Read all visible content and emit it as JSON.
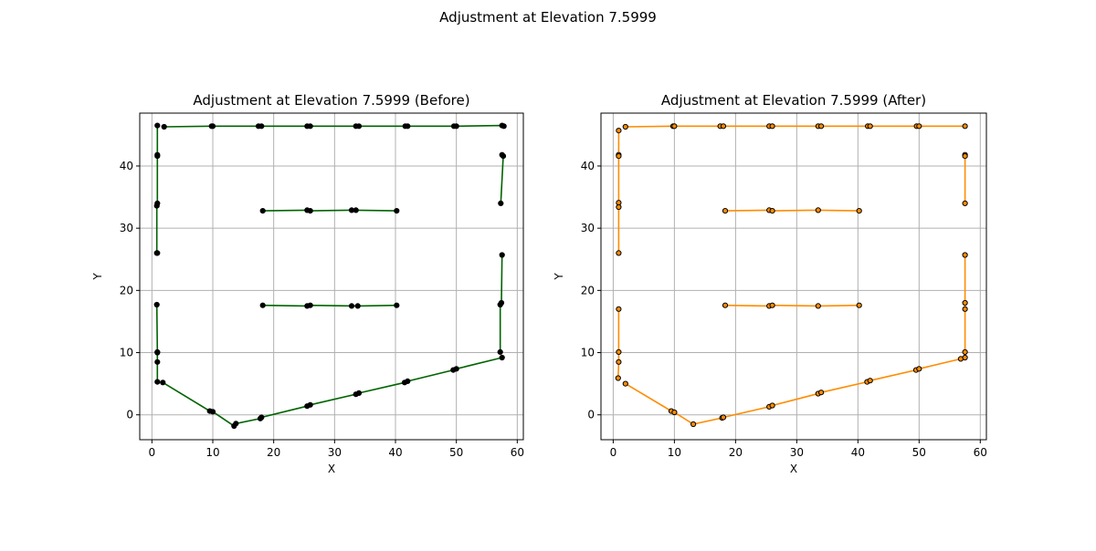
{
  "figure": {
    "suptitle": "Adjustment at Elevation 7.5999"
  },
  "chart_data": [
    {
      "type": "line",
      "title": "Adjustment at Elevation 7.5999 (Before)",
      "xlabel": "X",
      "ylabel": "Y",
      "xlim": [
        -2,
        61
      ],
      "ylim": [
        -4,
        48.5
      ],
      "xticks": [
        0,
        10,
        20,
        30,
        40,
        50,
        60
      ],
      "yticks": [
        0,
        10,
        20,
        30,
        40
      ],
      "grid": true,
      "line_color": "#006400",
      "marker_color": "#000000",
      "series": [
        {
          "x": [
            2.0,
            9.8,
            10.0,
            17.5,
            18.0,
            25.5,
            26.0,
            33.5,
            34.0,
            41.6,
            42.0,
            49.6,
            50.0,
            57.5,
            57.8
          ],
          "y": [
            46.3,
            46.4,
            46.4,
            46.4,
            46.4,
            46.4,
            46.4,
            46.4,
            46.4,
            46.4,
            46.4,
            46.4,
            46.4,
            46.5,
            46.4
          ]
        },
        {
          "x": [
            0.9,
            0.9,
            0.9,
            0.9,
            0.8,
            0.8,
            0.9
          ],
          "y": [
            46.5,
            41.8,
            41.6,
            34.0,
            33.6,
            26.0,
            26.0
          ]
        },
        {
          "x": [
            57.5,
            57.7,
            57.3
          ],
          "y": [
            41.8,
            41.6,
            34.0
          ]
        },
        {
          "x": [
            18.2,
            25.5,
            26.0,
            32.8,
            33.5,
            40.2
          ],
          "y": [
            32.8,
            32.9,
            32.8,
            32.9,
            32.9,
            32.8
          ]
        },
        {
          "x": [
            18.2,
            25.5,
            26.0,
            32.8,
            33.8,
            40.2
          ],
          "y": [
            17.6,
            17.5,
            17.6,
            17.5,
            17.5,
            17.6
          ]
        },
        {
          "x": [
            0.8,
            0.9,
            0.9,
            0.9,
            0.9
          ],
          "y": [
            17.7,
            10.1,
            10.0,
            8.5,
            5.3
          ]
        },
        {
          "x": [
            57.5,
            57.4,
            57.2,
            57.2
          ],
          "y": [
            25.7,
            18.0,
            17.7,
            10.1
          ]
        },
        {
          "x": [
            1.8,
            9.5,
            10.0,
            13.5,
            13.8,
            17.8,
            18.0,
            25.5,
            26.0,
            33.5,
            34.0,
            41.5,
            42.0,
            49.5,
            50.0,
            57.5
          ],
          "y": [
            5.2,
            0.6,
            0.5,
            -1.8,
            -1.4,
            -0.6,
            -0.4,
            1.4,
            1.6,
            3.3,
            3.5,
            5.2,
            5.4,
            7.2,
            7.4,
            9.2
          ]
        }
      ]
    },
    {
      "type": "line",
      "title": "Adjustment at Elevation 7.5999 (After)",
      "xlabel": "X",
      "ylabel": "Y",
      "xlim": [
        -2,
        61
      ],
      "ylim": [
        -4,
        48.5
      ],
      "xticks": [
        0,
        10,
        20,
        30,
        40,
        50,
        60
      ],
      "yticks": [
        0,
        10,
        20,
        30,
        40
      ],
      "grid": true,
      "line_color": "#ff8c00",
      "marker_color": "#ff8c00",
      "series": [
        {
          "x": [
            2.0,
            9.8,
            10.0,
            17.5,
            18.0,
            25.5,
            26.0,
            33.5,
            34.0,
            41.6,
            42.0,
            49.6,
            50.0,
            57.5
          ],
          "y": [
            46.3,
            46.4,
            46.4,
            46.4,
            46.4,
            46.4,
            46.4,
            46.4,
            46.4,
            46.4,
            46.4,
            46.4,
            46.4,
            46.4
          ]
        },
        {
          "x": [
            0.9,
            0.9,
            0.9,
            0.9,
            0.9,
            0.9
          ],
          "y": [
            45.7,
            41.8,
            41.6,
            34.1,
            33.4,
            26.0
          ]
        },
        {
          "x": [
            57.5,
            57.5,
            57.5
          ],
          "y": [
            41.8,
            41.6,
            34.0
          ]
        },
        {
          "x": [
            18.3,
            25.5,
            26.0,
            33.5,
            40.2
          ],
          "y": [
            32.8,
            32.9,
            32.8,
            32.9,
            32.8
          ]
        },
        {
          "x": [
            18.3,
            25.5,
            26.0,
            33.5,
            40.2
          ],
          "y": [
            17.6,
            17.5,
            17.6,
            17.5,
            17.6
          ]
        },
        {
          "x": [
            0.9,
            0.9,
            0.9,
            0.8
          ],
          "y": [
            17.0,
            10.1,
            8.5,
            5.9
          ]
        },
        {
          "x": [
            57.5,
            57.5,
            57.5,
            57.5
          ],
          "y": [
            25.7,
            18.0,
            17.0,
            10.1
          ]
        },
        {
          "x": [
            2.0,
            9.5,
            10.0,
            13.1,
            17.8,
            18.0,
            25.5,
            26.0,
            33.5,
            34.0,
            41.5,
            42.0,
            49.5,
            50.0,
            56.8,
            57.5
          ],
          "y": [
            5.0,
            0.6,
            0.4,
            -1.5,
            -0.5,
            -0.4,
            1.3,
            1.5,
            3.4,
            3.6,
            5.3,
            5.5,
            7.2,
            7.4,
            9.0,
            9.2
          ]
        }
      ]
    }
  ]
}
